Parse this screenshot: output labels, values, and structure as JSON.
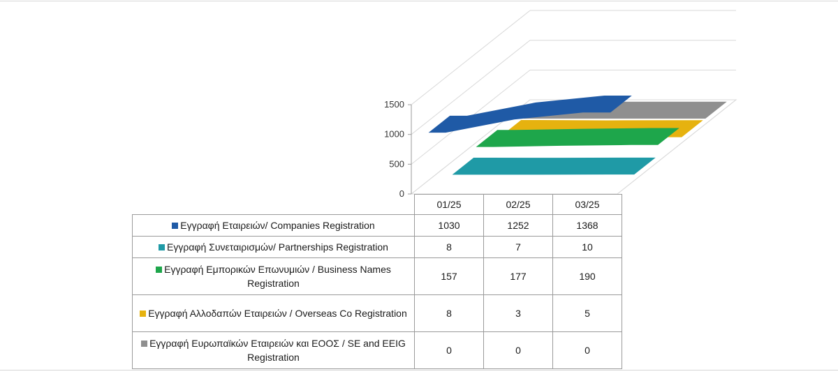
{
  "chart_data": {
    "type": "line",
    "three_d": true,
    "y_ticks": [
      "0",
      "500",
      "1000",
      "1500"
    ],
    "ylim": [
      0,
      1500
    ],
    "categories": [
      "01/25",
      "02/25",
      "03/25"
    ],
    "grid": true,
    "legend": "data-table",
    "series": [
      {
        "name": "Εγγραφή Εταιρειών/ Companies Registration",
        "color": "#1f5aa6",
        "values": [
          1030,
          1252,
          1368
        ]
      },
      {
        "name": "Εγγραφή Συνεταιρισμών/ Partnerships Registration",
        "color": "#1f9aa6",
        "values": [
          8,
          7,
          10
        ]
      },
      {
        "name": "Εγγραφή Εμπορικών Επωνυμιών / Business Names Registration",
        "color": "#1ea64b",
        "values": [
          157,
          177,
          190
        ]
      },
      {
        "name": "Εγγραφή Αλλοδαπών Εταιρειών / Overseas Co Registration",
        "color": "#e6b20f",
        "values": [
          8,
          3,
          5
        ]
      },
      {
        "name": "Εγγραφή Ευρωπαϊκών Εταιρειών και ΕΟΟΣ / SE and EEIG Registration",
        "color": "#8f8f8f",
        "values": [
          0,
          0,
          0
        ]
      }
    ]
  },
  "table": {
    "headers": [
      "01/25",
      "02/25",
      "03/25"
    ],
    "rows": [
      {
        "label": "Εγγραφή Εταιρειών/ Companies Registration",
        "values": [
          "1030",
          "1252",
          "1368"
        ]
      },
      {
        "label": "Εγγραφή Συνεταιρισμών/ Partnerships Registration",
        "values": [
          "8",
          "7",
          "10"
        ]
      },
      {
        "label": "Εγγραφή Εμπορικών Επωνυμιών / Business Names Registration",
        "values": [
          "157",
          "177",
          "190"
        ]
      },
      {
        "label": "Εγγραφή Αλλοδαπών Εταιρειών / Overseas Co Registration",
        "values": [
          "8",
          "3",
          "5"
        ]
      },
      {
        "label": "Εγγραφή Ευρωπαϊκών Εταιρειών και ΕΟΟΣ / SE and EEIG Registration",
        "values": [
          "0",
          "0",
          "0"
        ]
      }
    ]
  }
}
